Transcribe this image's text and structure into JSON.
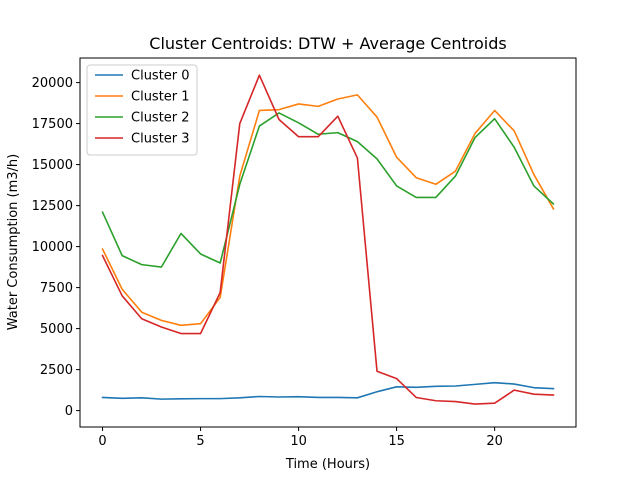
{
  "chart_data": {
    "type": "line",
    "title": "Cluster Centroids: DTW + Average Centroids",
    "xlabel": "Time (Hours)",
    "ylabel": "Water Consumption (m3/h)",
    "xlim": [
      -1.15,
      24.15
    ],
    "ylim": [
      -1000,
      21500
    ],
    "xticks": [
      0,
      5,
      10,
      15,
      20
    ],
    "xtick_labels": [
      "0",
      "5",
      "10",
      "15",
      "20"
    ],
    "yticks": [
      0,
      2500,
      5000,
      7500,
      10000,
      12500,
      15000,
      17500,
      20000
    ],
    "ytick_labels": [
      "0",
      "2500",
      "5000",
      "7500",
      "10000",
      "12500",
      "15000",
      "17500",
      "20000"
    ],
    "legend_position": "upper left",
    "x": [
      0,
      1,
      2,
      3,
      4,
      5,
      6,
      7,
      8,
      9,
      10,
      11,
      12,
      13,
      14,
      15,
      16,
      17,
      18,
      19,
      20,
      21,
      22,
      23
    ],
    "series": [
      {
        "name": "Cluster 0",
        "color": "#1f77b4",
        "values": [
          800,
          750,
          780,
          700,
          720,
          730,
          730,
          780,
          860,
          830,
          850,
          800,
          800,
          780,
          1150,
          1450,
          1420,
          1480,
          1500,
          1600,
          1700,
          1620,
          1400,
          1340
        ]
      },
      {
        "name": "Cluster 1",
        "color": "#ff7f0e",
        "values": [
          9850,
          7400,
          6000,
          5500,
          5200,
          5300,
          6900,
          14300,
          18300,
          18350,
          18700,
          18550,
          19000,
          19250,
          17900,
          15450,
          14200,
          13800,
          14600,
          16900,
          18300,
          17050,
          14400,
          12300
        ]
      },
      {
        "name": "Cluster 2",
        "color": "#2ca02c",
        "values": [
          12100,
          9450,
          8900,
          8750,
          10800,
          9550,
          9000,
          13800,
          17350,
          18150,
          17550,
          16850,
          16950,
          16400,
          15350,
          13700,
          13000,
          13000,
          14300,
          16650,
          17800,
          16050,
          13700,
          12600
        ]
      },
      {
        "name": "Cluster 3",
        "color": "#d62728",
        "values": [
          9450,
          7000,
          5600,
          5100,
          4700,
          4700,
          7200,
          17500,
          20450,
          17750,
          16700,
          16700,
          17950,
          15400,
          2400,
          1950,
          800,
          600,
          550,
          400,
          450,
          1250,
          1000,
          950
        ]
      }
    ]
  }
}
